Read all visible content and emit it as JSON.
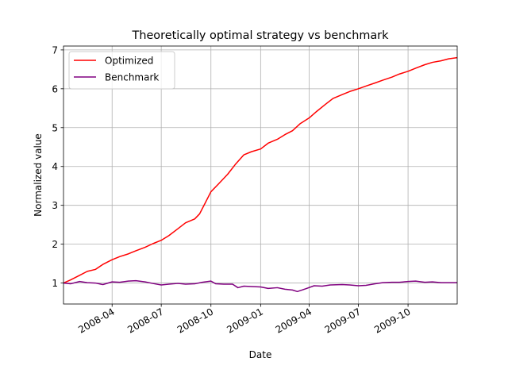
{
  "chart_data": {
    "type": "line",
    "title": "Theoretically optimal strategy vs benchmark",
    "xlabel": "Date",
    "ylabel": "Normalized value",
    "xlim": [
      "2008-01-02",
      "2009-12-31"
    ],
    "ylim": [
      0.46,
      7.1
    ],
    "x_ticks": [
      "2008-04",
      "2008-07",
      "2008-10",
      "2009-01",
      "2009-04",
      "2009-07",
      "2009-10"
    ],
    "y_ticks": [
      "1",
      "2",
      "3",
      "4",
      "5",
      "6",
      "7"
    ],
    "grid": true,
    "legend_position": "upper left",
    "series": [
      {
        "name": "Optimized",
        "color": "#ff0000",
        "points": [
          [
            "2008-01-02",
            1.0
          ],
          [
            "2008-01-15",
            1.08
          ],
          [
            "2008-02-01",
            1.2
          ],
          [
            "2008-02-15",
            1.3
          ],
          [
            "2008-03-01",
            1.35
          ],
          [
            "2008-03-15",
            1.48
          ],
          [
            "2008-04-01",
            1.6
          ],
          [
            "2008-04-15",
            1.68
          ],
          [
            "2008-05-01",
            1.75
          ],
          [
            "2008-05-15",
            1.83
          ],
          [
            "2008-06-01",
            1.92
          ],
          [
            "2008-06-15",
            2.01
          ],
          [
            "2008-07-01",
            2.1
          ],
          [
            "2008-07-15",
            2.22
          ],
          [
            "2008-08-01",
            2.4
          ],
          [
            "2008-08-15",
            2.55
          ],
          [
            "2008-09-01",
            2.65
          ],
          [
            "2008-09-10",
            2.78
          ],
          [
            "2008-09-20",
            3.05
          ],
          [
            "2008-10-01",
            3.35
          ],
          [
            "2008-10-15",
            3.55
          ],
          [
            "2008-11-01",
            3.8
          ],
          [
            "2008-11-15",
            4.05
          ],
          [
            "2008-12-01",
            4.3
          ],
          [
            "2008-12-15",
            4.38
          ],
          [
            "2009-01-01",
            4.45
          ],
          [
            "2009-01-15",
            4.6
          ],
          [
            "2009-02-01",
            4.7
          ],
          [
            "2009-02-15",
            4.82
          ],
          [
            "2009-03-01",
            4.92
          ],
          [
            "2009-03-15",
            5.1
          ],
          [
            "2009-04-01",
            5.25
          ],
          [
            "2009-04-15",
            5.42
          ],
          [
            "2009-05-01",
            5.6
          ],
          [
            "2009-05-15",
            5.75
          ],
          [
            "2009-06-01",
            5.85
          ],
          [
            "2009-06-15",
            5.93
          ],
          [
            "2009-07-01",
            6.0
          ],
          [
            "2009-07-15",
            6.07
          ],
          [
            "2009-08-01",
            6.15
          ],
          [
            "2009-08-15",
            6.22
          ],
          [
            "2009-09-01",
            6.3
          ],
          [
            "2009-09-15",
            6.38
          ],
          [
            "2009-10-01",
            6.45
          ],
          [
            "2009-10-15",
            6.53
          ],
          [
            "2009-11-01",
            6.62
          ],
          [
            "2009-11-15",
            6.68
          ],
          [
            "2009-12-01",
            6.72
          ],
          [
            "2009-12-15",
            6.77
          ],
          [
            "2009-12-31",
            6.8
          ]
        ]
      },
      {
        "name": "Benchmark",
        "color": "#800080",
        "points": [
          [
            "2008-01-02",
            1.0
          ],
          [
            "2008-01-15",
            0.98
          ],
          [
            "2008-02-01",
            1.04
          ],
          [
            "2008-02-15",
            1.01
          ],
          [
            "2008-03-01",
            1.0
          ],
          [
            "2008-03-15",
            0.96
          ],
          [
            "2008-04-01",
            1.03
          ],
          [
            "2008-04-15",
            1.02
          ],
          [
            "2008-05-01",
            1.05
          ],
          [
            "2008-05-15",
            1.06
          ],
          [
            "2008-06-01",
            1.03
          ],
          [
            "2008-06-15",
            0.99
          ],
          [
            "2008-07-01",
            0.95
          ],
          [
            "2008-07-15",
            0.97
          ],
          [
            "2008-08-01",
            0.99
          ],
          [
            "2008-08-15",
            0.97
          ],
          [
            "2008-09-01",
            0.98
          ],
          [
            "2008-09-15",
            1.02
          ],
          [
            "2008-10-01",
            1.05
          ],
          [
            "2008-10-10",
            0.98
          ],
          [
            "2008-10-25",
            0.97
          ],
          [
            "2008-11-10",
            0.97
          ],
          [
            "2008-11-20",
            0.88
          ],
          [
            "2008-12-01",
            0.92
          ],
          [
            "2008-12-15",
            0.91
          ],
          [
            "2009-01-01",
            0.9
          ],
          [
            "2009-01-15",
            0.86
          ],
          [
            "2009-02-01",
            0.88
          ],
          [
            "2009-02-15",
            0.84
          ],
          [
            "2009-03-01",
            0.82
          ],
          [
            "2009-03-10",
            0.78
          ],
          [
            "2009-03-25",
            0.85
          ],
          [
            "2009-04-10",
            0.93
          ],
          [
            "2009-04-25",
            0.92
          ],
          [
            "2009-05-10",
            0.95
          ],
          [
            "2009-06-01",
            0.96
          ],
          [
            "2009-06-15",
            0.95
          ],
          [
            "2009-07-01",
            0.93
          ],
          [
            "2009-07-15",
            0.94
          ],
          [
            "2009-08-01",
            0.98
          ],
          [
            "2009-08-15",
            1.01
          ],
          [
            "2009-09-01",
            1.02
          ],
          [
            "2009-09-15",
            1.02
          ],
          [
            "2009-10-01",
            1.04
          ],
          [
            "2009-10-15",
            1.05
          ],
          [
            "2009-11-01",
            1.02
          ],
          [
            "2009-11-15",
            1.03
          ],
          [
            "2009-12-01",
            1.01
          ],
          [
            "2009-12-15",
            1.01
          ],
          [
            "2009-12-31",
            1.01
          ]
        ]
      }
    ]
  }
}
